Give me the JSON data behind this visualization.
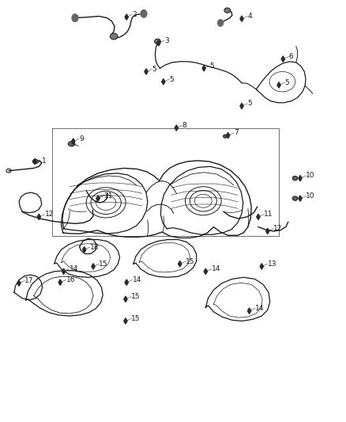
{
  "figsize": [
    4.38,
    5.33
  ],
  "dpi": 100,
  "bg": "#ffffff",
  "lc": "#1a1a1a",
  "lw": 0.8,
  "label_fs": 6.5,
  "callouts": [
    {
      "label": "1",
      "dot": [
        0.098,
        0.618
      ],
      "txt": [
        0.118,
        0.618
      ]
    },
    {
      "label": "2",
      "dot": [
        0.365,
        0.962
      ],
      "txt": [
        0.382,
        0.968
      ]
    },
    {
      "label": "3",
      "dot": [
        0.458,
        0.9
      ],
      "txt": [
        0.475,
        0.906
      ]
    },
    {
      "label": "4",
      "dot": [
        0.7,
        0.958
      ],
      "txt": [
        0.717,
        0.964
      ]
    },
    {
      "label": "5",
      "dot": [
        0.422,
        0.832
      ],
      "txt": [
        0.439,
        0.838
      ]
    },
    {
      "label": "5",
      "dot": [
        0.472,
        0.808
      ],
      "txt": [
        0.489,
        0.814
      ]
    },
    {
      "label": "5",
      "dot": [
        0.59,
        0.84
      ],
      "txt": [
        0.607,
        0.846
      ]
    },
    {
      "label": "5",
      "dot": [
        0.808,
        0.8
      ],
      "txt": [
        0.825,
        0.806
      ]
    },
    {
      "label": "5",
      "dot": [
        0.7,
        0.75
      ],
      "txt": [
        0.717,
        0.756
      ]
    },
    {
      "label": "6",
      "dot": [
        0.82,
        0.862
      ],
      "txt": [
        0.837,
        0.868
      ]
    },
    {
      "label": "7",
      "dot": [
        0.66,
        0.68
      ],
      "txt": [
        0.677,
        0.686
      ]
    },
    {
      "label": "8",
      "dot": [
        0.51,
        0.698
      ],
      "txt": [
        0.527,
        0.704
      ]
    },
    {
      "label": "9",
      "dot": [
        0.21,
        0.666
      ],
      "txt": [
        0.227,
        0.672
      ]
    },
    {
      "label": "10",
      "dot": [
        0.87,
        0.578
      ],
      "txt": [
        0.887,
        0.584
      ]
    },
    {
      "label": "10",
      "dot": [
        0.87,
        0.53
      ],
      "txt": [
        0.887,
        0.536
      ]
    },
    {
      "label": "11",
      "dot": [
        0.282,
        0.53
      ],
      "txt": [
        0.299,
        0.536
      ]
    },
    {
      "label": "11",
      "dot": [
        0.748,
        0.486
      ],
      "txt": [
        0.765,
        0.492
      ]
    },
    {
      "label": "12",
      "dot": [
        0.11,
        0.486
      ],
      "txt": [
        0.127,
        0.492
      ]
    },
    {
      "label": "12",
      "dot": [
        0.775,
        0.452
      ],
      "txt": [
        0.792,
        0.458
      ]
    },
    {
      "label": "13",
      "dot": [
        0.758,
        0.368
      ],
      "txt": [
        0.775,
        0.374
      ]
    },
    {
      "label": "14",
      "dot": [
        0.182,
        0.356
      ],
      "txt": [
        0.199,
        0.362
      ]
    },
    {
      "label": "14",
      "dot": [
        0.365,
        0.33
      ],
      "txt": [
        0.382,
        0.336
      ]
    },
    {
      "label": "14",
      "dot": [
        0.595,
        0.356
      ],
      "txt": [
        0.612,
        0.362
      ]
    },
    {
      "label": "14",
      "dot": [
        0.722,
        0.262
      ],
      "txt": [
        0.739,
        0.268
      ]
    },
    {
      "label": "15",
      "dot": [
        0.268,
        0.368
      ],
      "txt": [
        0.285,
        0.374
      ]
    },
    {
      "label": "15",
      "dot": [
        0.362,
        0.29
      ],
      "txt": [
        0.379,
        0.296
      ]
    },
    {
      "label": "15",
      "dot": [
        0.52,
        0.374
      ],
      "txt": [
        0.537,
        0.38
      ]
    },
    {
      "label": "15",
      "dot": [
        0.362,
        0.238
      ],
      "txt": [
        0.379,
        0.244
      ]
    },
    {
      "label": "16",
      "dot": [
        0.172,
        0.33
      ],
      "txt": [
        0.189,
        0.336
      ]
    },
    {
      "label": "17",
      "dot": [
        0.052,
        0.328
      ],
      "txt": [
        0.069,
        0.334
      ]
    },
    {
      "label": "18",
      "dot": [
        0.242,
        0.408
      ],
      "txt": [
        0.259,
        0.414
      ]
    }
  ]
}
